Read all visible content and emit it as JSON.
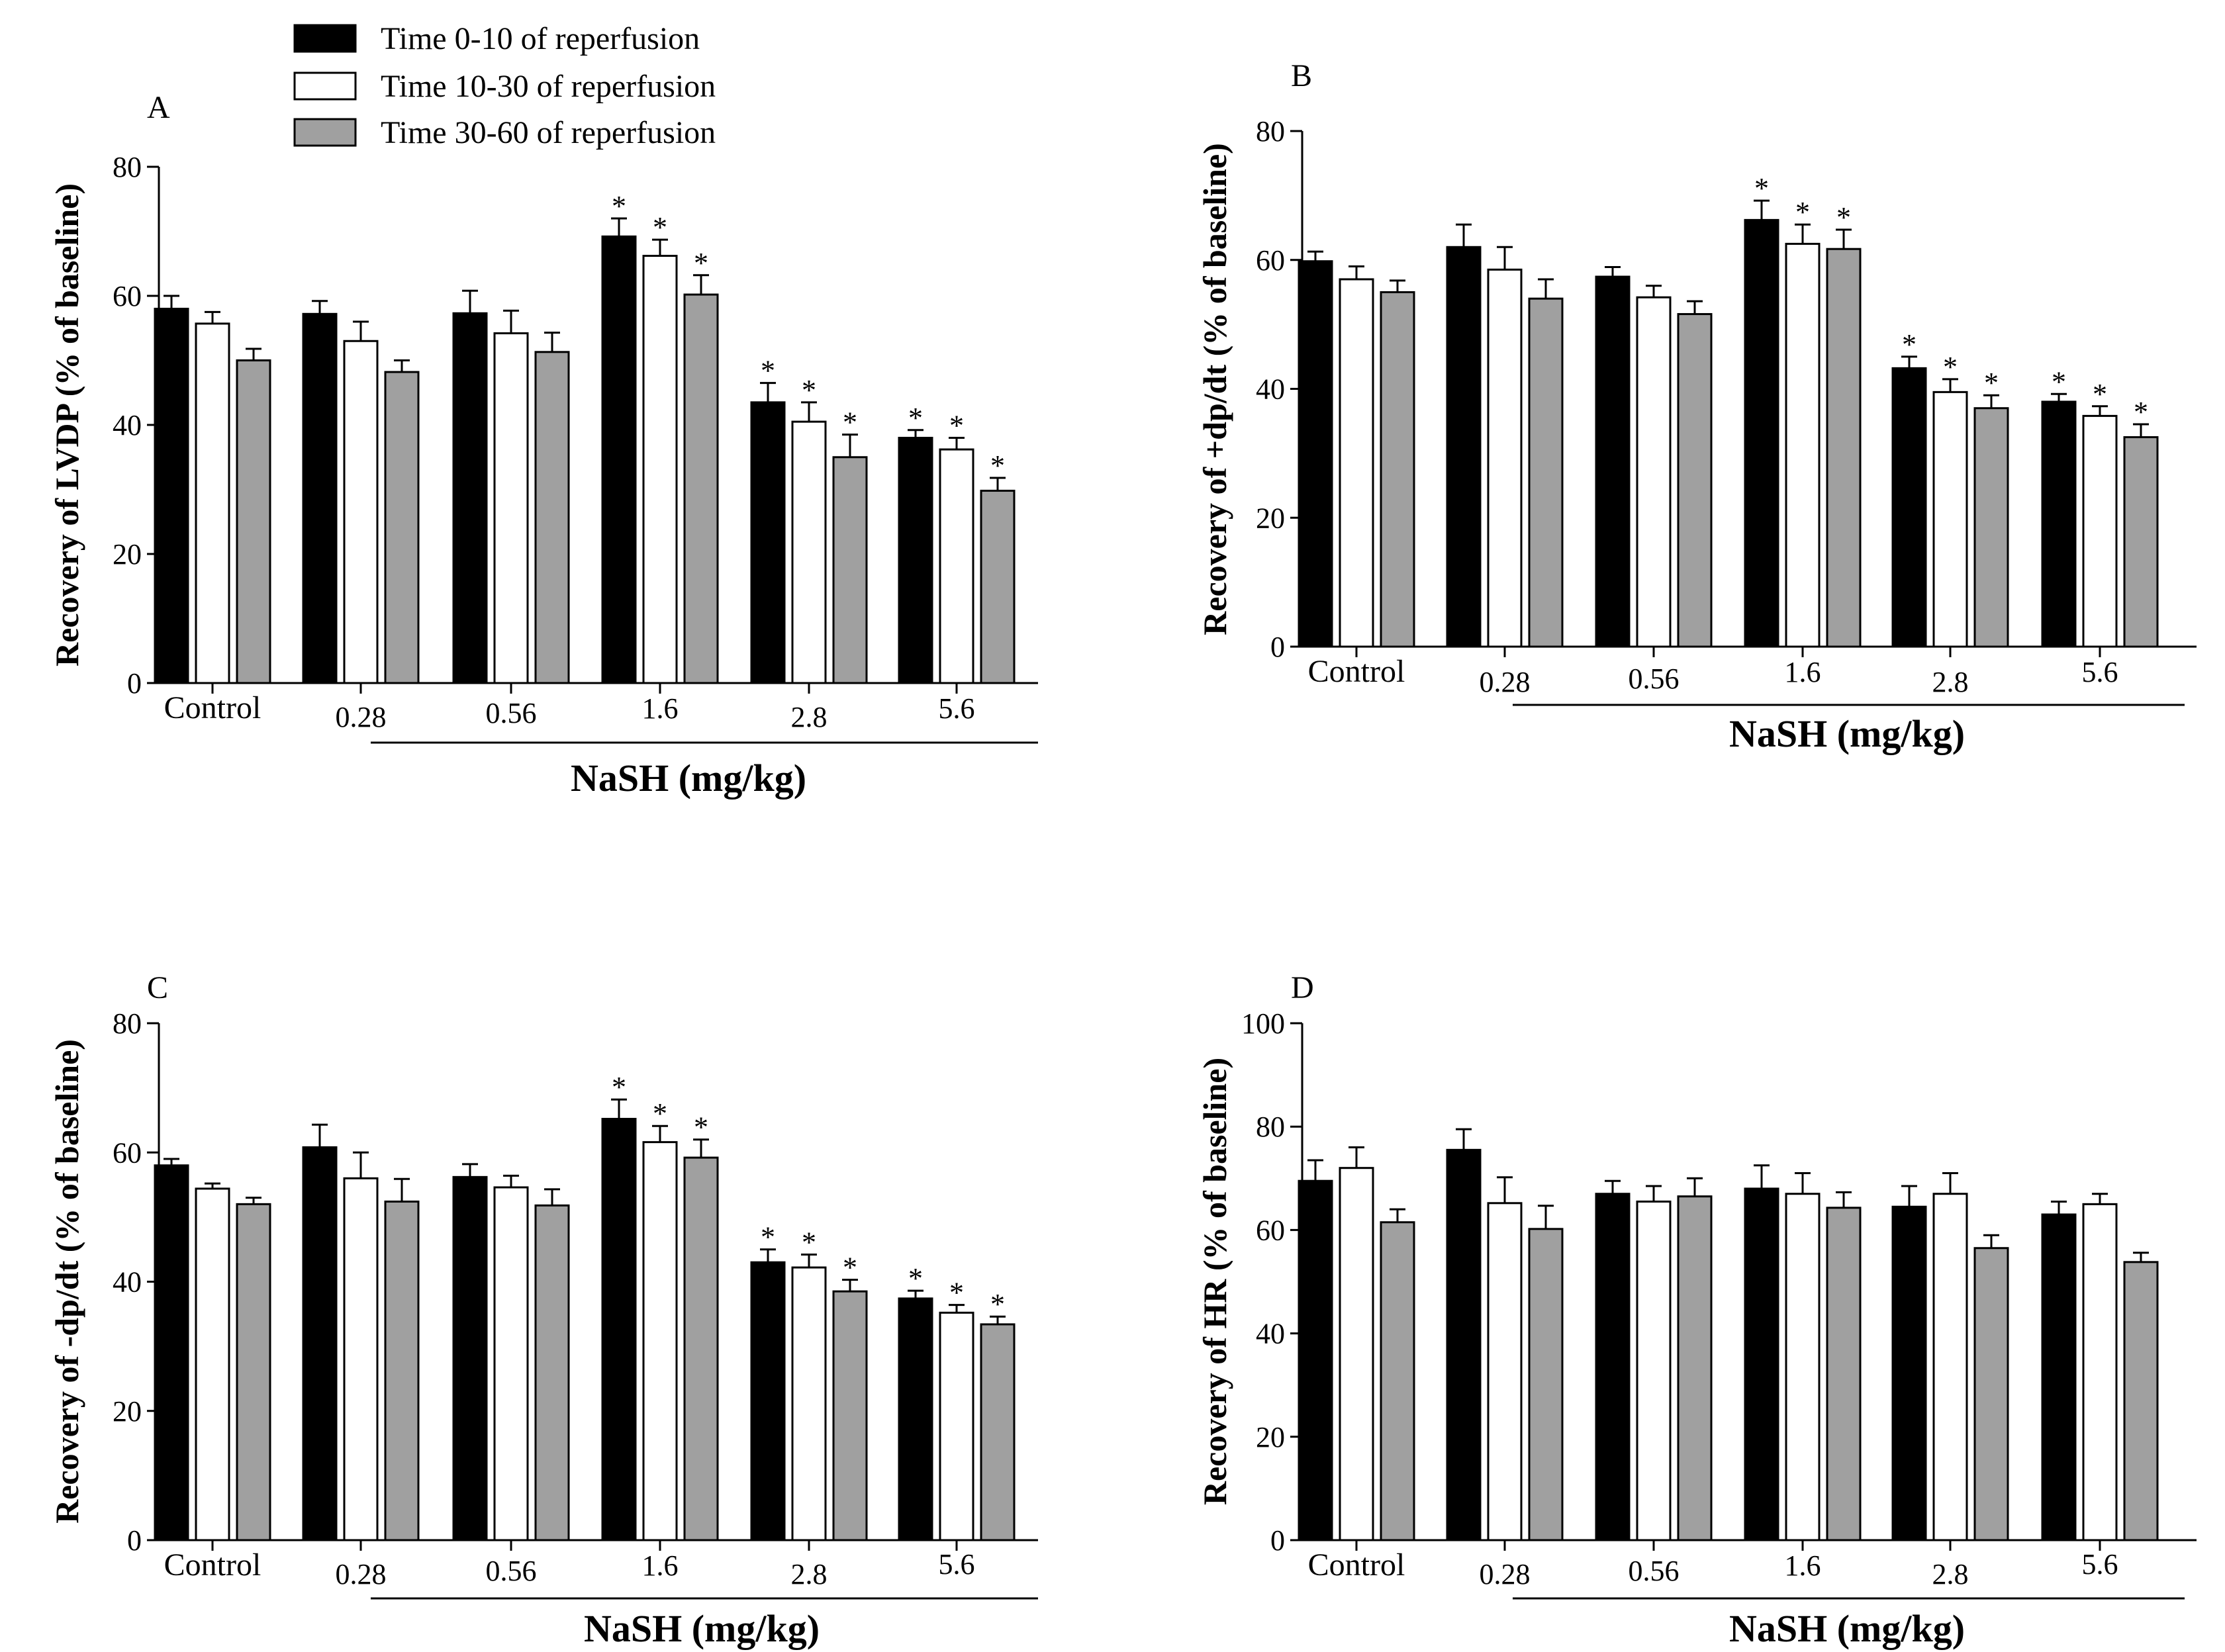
{
  "legend": {
    "entries": [
      {
        "label": "Time 0-10 of reperfusion",
        "color": "#000000"
      },
      {
        "label": "Time 10-30 of reperfusion",
        "color": "#ffffff"
      },
      {
        "label": "Time 30-60 of reperfusion",
        "color": "#a0a0a0"
      }
    ]
  },
  "chart_data": [
    {
      "panel": "A",
      "type": "bar",
      "categories": [
        "Control",
        "0.28",
        "0.56",
        "1.6",
        "2.8",
        "5.6"
      ],
      "xlabel": "NaSH (mg/kg)",
      "ylabel": "Recovery of LVDP (% of baseline)",
      "ylim": [
        0,
        80
      ],
      "yticks": [
        0,
        20,
        40,
        60,
        80
      ],
      "series": [
        {
          "name": "Time 0-10 of reperfusion",
          "values": [
            58,
            57.2,
            57.3,
            69.2,
            43.5,
            38
          ],
          "errors": [
            2,
            2,
            3.5,
            2.8,
            3,
            1.2
          ]
        },
        {
          "name": "Time 10-30 of reperfusion",
          "values": [
            55.7,
            53,
            54.2,
            66.2,
            40.5,
            36.2
          ],
          "errors": [
            1.8,
            3,
            3.5,
            2.5,
            3,
            1.8
          ]
        },
        {
          "name": "Time 30-60 of reperfusion",
          "values": [
            50,
            48.2,
            51.3,
            60.2,
            35,
            29.8
          ],
          "errors": [
            1.8,
            1.8,
            3,
            3,
            3.5,
            2
          ]
        }
      ],
      "significance": [
        [
          false,
          false,
          false,
          true,
          true,
          true
        ],
        [
          false,
          false,
          false,
          true,
          true,
          true
        ],
        [
          false,
          false,
          false,
          true,
          true,
          true
        ]
      ]
    },
    {
      "panel": "B",
      "type": "bar",
      "categories": [
        "Control",
        "0.28",
        "0.56",
        "1.6",
        "2.8",
        "5.6"
      ],
      "xlabel": "NaSH (mg/kg)",
      "ylabel": "Recovery of +dp/dt (% of baseline)",
      "ylim": [
        0,
        80
      ],
      "yticks": [
        0,
        20,
        40,
        60,
        80
      ],
      "series": [
        {
          "name": "Time 0-10 of reperfusion",
          "values": [
            59.8,
            62,
            57.4,
            66.2,
            43.2,
            38
          ],
          "errors": [
            1.5,
            3.5,
            1.5,
            3,
            1.8,
            1.2
          ]
        },
        {
          "name": "Time 10-30 of reperfusion",
          "values": [
            57,
            58.5,
            54.2,
            62.5,
            39.5,
            35.8
          ],
          "errors": [
            2,
            3.5,
            1.8,
            3,
            2,
            1.5
          ]
        },
        {
          "name": "Time 30-60 of reperfusion",
          "values": [
            55,
            54,
            51.6,
            61.7,
            37,
            32.5
          ],
          "errors": [
            1.8,
            3,
            2,
            3,
            2,
            2
          ]
        }
      ],
      "significance": [
        [
          false,
          false,
          false,
          true,
          true,
          true
        ],
        [
          false,
          false,
          false,
          true,
          true,
          true
        ],
        [
          false,
          false,
          false,
          true,
          true,
          true
        ]
      ]
    },
    {
      "panel": "C",
      "type": "bar",
      "categories": [
        "Control",
        "0.28",
        "0.56",
        "1.6",
        "2.8",
        "5.6"
      ],
      "xlabel": "NaSH (mg/kg)",
      "ylabel": "Recovery of -dp/dt (% of baseline)",
      "ylim": [
        0,
        80
      ],
      "yticks": [
        0,
        20,
        40,
        60,
        80
      ],
      "series": [
        {
          "name": "Time 0-10 of reperfusion",
          "values": [
            58,
            60.8,
            56.2,
            65.2,
            43,
            37.4
          ],
          "errors": [
            1,
            3.5,
            2,
            3,
            2,
            1.2
          ]
        },
        {
          "name": "Time 10-30 of reperfusion",
          "values": [
            54.4,
            56,
            54.6,
            61.6,
            42.2,
            35.2
          ],
          "errors": [
            0.8,
            4,
            1.8,
            2.5,
            2,
            1.2
          ]
        },
        {
          "name": "Time 30-60 of reperfusion",
          "values": [
            52,
            52.4,
            51.8,
            59.2,
            38.5,
            33.4
          ],
          "errors": [
            1,
            3.5,
            2.5,
            2.8,
            1.8,
            1.2
          ]
        }
      ],
      "significance": [
        [
          false,
          false,
          false,
          true,
          true,
          true
        ],
        [
          false,
          false,
          false,
          true,
          true,
          true
        ],
        [
          false,
          false,
          false,
          true,
          true,
          true
        ]
      ]
    },
    {
      "panel": "D",
      "type": "bar",
      "categories": [
        "Control",
        "0.28",
        "0.56",
        "1.6",
        "2.8",
        "5.6"
      ],
      "xlabel": "NaSH (mg/kg)",
      "ylabel": "Recovery of HR (% of baseline)",
      "ylim": [
        0,
        100
      ],
      "yticks": [
        0,
        20,
        40,
        60,
        80,
        100
      ],
      "series": [
        {
          "name": "Time 0-10 of reperfusion",
          "values": [
            69.5,
            75.5,
            67,
            68,
            64.5,
            63
          ],
          "errors": [
            4,
            4,
            2.5,
            4.5,
            4,
            2.5
          ]
        },
        {
          "name": "Time 10-30 of reperfusion",
          "values": [
            72,
            65.2,
            65.5,
            67,
            67,
            65
          ],
          "errors": [
            4,
            5,
            3,
            4,
            4,
            2
          ]
        },
        {
          "name": "Time 30-60 of reperfusion",
          "values": [
            61.5,
            60.2,
            66.5,
            64.3,
            56.5,
            53.8
          ],
          "errors": [
            2.5,
            4.5,
            3.5,
            3,
            2.5,
            1.8
          ]
        }
      ],
      "significance": [
        [
          false,
          false,
          false,
          false,
          false,
          false
        ],
        [
          false,
          false,
          false,
          false,
          false,
          false
        ],
        [
          false,
          false,
          false,
          false,
          false,
          false
        ]
      ]
    }
  ]
}
